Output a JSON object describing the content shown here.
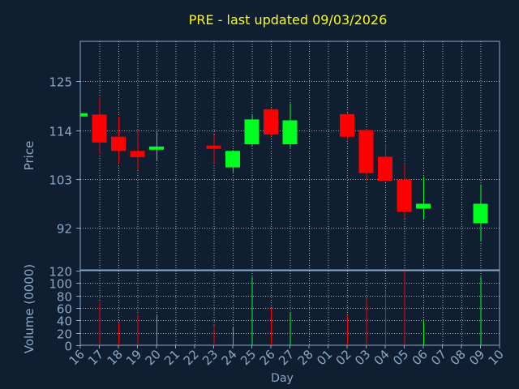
{
  "colors": {
    "background": "#0f1e30",
    "plot_border": "#8aa8c8",
    "grid": "#ffffff",
    "title": "#ffff00",
    "text": "#8aa8c8",
    "up": "#00ff20",
    "down": "#ff0000"
  },
  "chart_data": [
    {
      "type": "candlestick",
      "title": "PRE - last updated 09/03/2026",
      "ylabel": "Price",
      "xlabel": "",
      "ylim": [
        82.5,
        134
      ],
      "yticks": [
        92,
        103,
        114,
        125
      ],
      "grid": true,
      "x_ticks": [
        "16",
        "17",
        "18",
        "19",
        "20",
        "21",
        "22",
        "23",
        "24",
        "25",
        "26",
        "27",
        "28",
        "01",
        "02",
        "03",
        "04",
        "05",
        "06",
        "07",
        "08",
        "09",
        "10"
      ],
      "candles": [
        {
          "x": 16,
          "open": 117.8,
          "close": 117.8,
          "high": 117.8,
          "low": 117.8
        },
        {
          "x": 17,
          "open": 117.5,
          "close": 111.2,
          "high": 121.5,
          "low": 108.5
        },
        {
          "x": 18,
          "open": 112.5,
          "close": 109.3,
          "high": 117.0,
          "low": 106.5
        },
        {
          "x": 19,
          "open": 109.3,
          "close": 107.9,
          "high": 114.0,
          "low": 105.0
        },
        {
          "x": 20,
          "open": 109.6,
          "close": 110.3,
          "high": 113.5,
          "low": 107.0
        },
        {
          "x": 23,
          "open": 110.5,
          "close": 109.8,
          "high": 113.0,
          "low": 106.5
        },
        {
          "x": 24,
          "open": 105.6,
          "close": 109.3,
          "high": 109.5,
          "low": 104.5
        },
        {
          "x": 25,
          "open": 110.8,
          "close": 116.4,
          "high": 117.5,
          "low": 110.5
        },
        {
          "x": 26,
          "open": 118.7,
          "close": 113.0,
          "high": 119.0,
          "low": 112.5
        },
        {
          "x": 27,
          "open": 110.8,
          "close": 116.2,
          "high": 120.0,
          "low": 110.0
        },
        {
          "x": "02",
          "open": 117.6,
          "close": 112.5,
          "high": 117.9,
          "low": 111.8
        },
        {
          "x": "03",
          "open": 114.0,
          "close": 104.3,
          "high": 114.2,
          "low": 102.5
        },
        {
          "x": "04",
          "open": 108.0,
          "close": 102.6,
          "high": 111.0,
          "low": 102.3
        },
        {
          "x": "05",
          "open": 102.8,
          "close": 95.6,
          "high": 106.5,
          "low": 94.0
        },
        {
          "x": "06",
          "open": 96.3,
          "close": 97.4,
          "high": 103.5,
          "low": 94.0
        },
        {
          "x": "09",
          "open": 93.0,
          "close": 97.4,
          "high": 101.8,
          "low": 89.0
        }
      ]
    },
    {
      "type": "bar",
      "ylabel": "Volume (0000)",
      "xlabel": "Day",
      "ylim": [
        0,
        120
      ],
      "yticks": [
        0,
        20,
        40,
        60,
        80,
        100,
        120
      ],
      "grid": true,
      "x_ticks": [
        "16",
        "17",
        "18",
        "19",
        "20",
        "21",
        "22",
        "23",
        "24",
        "25",
        "26",
        "27",
        "28",
        "01",
        "02",
        "03",
        "04",
        "05",
        "06",
        "07",
        "08",
        "09",
        "10"
      ],
      "bars": [
        {
          "x": 17,
          "value": 70,
          "direction": "down"
        },
        {
          "x": 18,
          "value": 36,
          "direction": "down"
        },
        {
          "x": 19,
          "value": 50,
          "direction": "down"
        },
        {
          "x": 20,
          "value": 48,
          "direction": "up"
        },
        {
          "x": 23,
          "value": 33,
          "direction": "down"
        },
        {
          "x": 24,
          "value": 30,
          "direction": "up"
        },
        {
          "x": 25,
          "value": 110,
          "direction": "up"
        },
        {
          "x": 26,
          "value": 60,
          "direction": "down"
        },
        {
          "x": 27,
          "value": 52,
          "direction": "up"
        },
        {
          "x": "02",
          "value": 48,
          "direction": "down"
        },
        {
          "x": "03",
          "value": 75,
          "direction": "down"
        },
        {
          "x": "04",
          "value": 88,
          "direction": "down"
        },
        {
          "x": "05",
          "value": 120,
          "direction": "down"
        },
        {
          "x": "06",
          "value": 40,
          "direction": "up"
        },
        {
          "x": "09",
          "value": 110,
          "direction": "up"
        }
      ]
    }
  ]
}
